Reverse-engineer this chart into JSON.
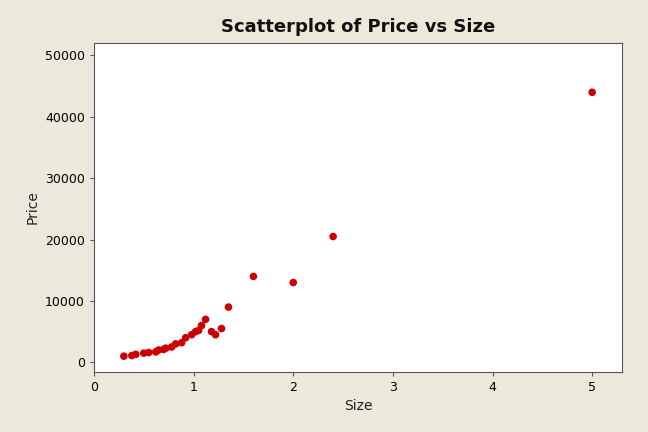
{
  "title": "Scatterplot of Price vs Size",
  "xlabel": "Size",
  "ylabel": "Price",
  "background_color": "#ede8dc",
  "plot_bg_color": "#ffffff",
  "dot_color": "#cc0000",
  "xlim": [
    0.2,
    5.3
  ],
  "ylim": [
    -1500,
    52000
  ],
  "xticks": [
    0,
    1,
    2,
    3,
    4,
    5
  ],
  "yticks": [
    0,
    10000,
    20000,
    30000,
    40000,
    50000
  ],
  "size_data": [
    0.3,
    0.38,
    0.42,
    0.5,
    0.55,
    0.62,
    0.65,
    0.7,
    0.72,
    0.78,
    0.82,
    0.88,
    0.92,
    0.98,
    1.02,
    1.05,
    1.08,
    1.12,
    1.18,
    1.22,
    1.28,
    1.35,
    1.6,
    2.0,
    2.4,
    5.0
  ],
  "price_data": [
    1000,
    1100,
    1300,
    1500,
    1600,
    1700,
    2000,
    2100,
    2300,
    2500,
    3000,
    3200,
    4000,
    4500,
    5000,
    5200,
    6000,
    7000,
    5000,
    4500,
    5500,
    9000,
    14000,
    13000,
    20500,
    44000
  ],
  "title_fontsize": 13,
  "label_fontsize": 10,
  "tick_fontsize": 9,
  "marker_size": 30
}
